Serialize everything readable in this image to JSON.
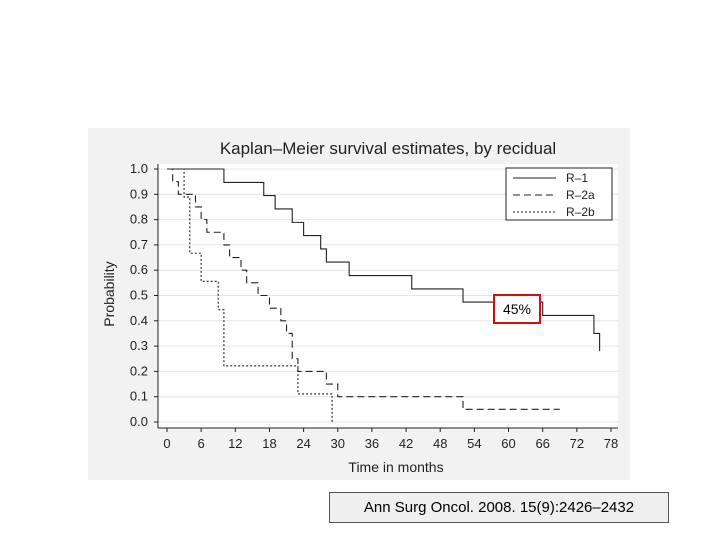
{
  "chart_data": {
    "type": "line",
    "title": "Kaplan–Meier survival estimates, by recidual",
    "xlabel": "Time in months",
    "ylabel": "Probability",
    "xlim": [
      0,
      78
    ],
    "ylim": [
      0,
      1
    ],
    "xticks": [
      "0",
      "6",
      "12",
      "18",
      "24",
      "30",
      "36",
      "42",
      "48",
      "54",
      "60",
      "66",
      "72",
      "78"
    ],
    "yticks": [
      "0.0",
      "0.1",
      "0.2",
      "0.3",
      "0.4",
      "0.5",
      "0.6",
      "0.7",
      "0.8",
      "0.9",
      "1.0"
    ],
    "legend_position": "top-right",
    "grid": true,
    "series": [
      {
        "name": "R–1",
        "style": "solid",
        "x": [
          0,
          10,
          17,
          19,
          22,
          24,
          27,
          28,
          32,
          43,
          52,
          66,
          75,
          76
        ],
        "y": [
          1.0,
          0.947,
          0.895,
          0.842,
          0.789,
          0.737,
          0.684,
          0.632,
          0.579,
          0.526,
          0.474,
          0.421,
          0.35,
          0.28
        ],
        "end_x": 76
      },
      {
        "name": "R–2a",
        "style": "dashed",
        "x": [
          0,
          1,
          2,
          5,
          6,
          7,
          10,
          11,
          13,
          14,
          16,
          18,
          20,
          21,
          22,
          23,
          28,
          30,
          52
        ],
        "y": [
          1.0,
          0.95,
          0.9,
          0.85,
          0.8,
          0.75,
          0.7,
          0.65,
          0.6,
          0.55,
          0.5,
          0.45,
          0.4,
          0.35,
          0.25,
          0.2,
          0.15,
          0.1,
          0.05
        ],
        "end_x": 69
      },
      {
        "name": "R–2b",
        "style": "dotted",
        "x": [
          0,
          3,
          4,
          6,
          9,
          10,
          23,
          29
        ],
        "y": [
          1.0,
          0.889,
          0.667,
          0.556,
          0.444,
          0.222,
          0.111,
          0.0
        ],
        "end_x": 29
      }
    ],
    "annotation": "45%"
  },
  "citation": "Ann Surg Oncol. 2008. 15(9):2426–2432",
  "colors": {
    "plot_bg": "#ffffff",
    "outer_bg": "#f2f2f2",
    "line": "#222222",
    "callout_border": "#d01010"
  }
}
